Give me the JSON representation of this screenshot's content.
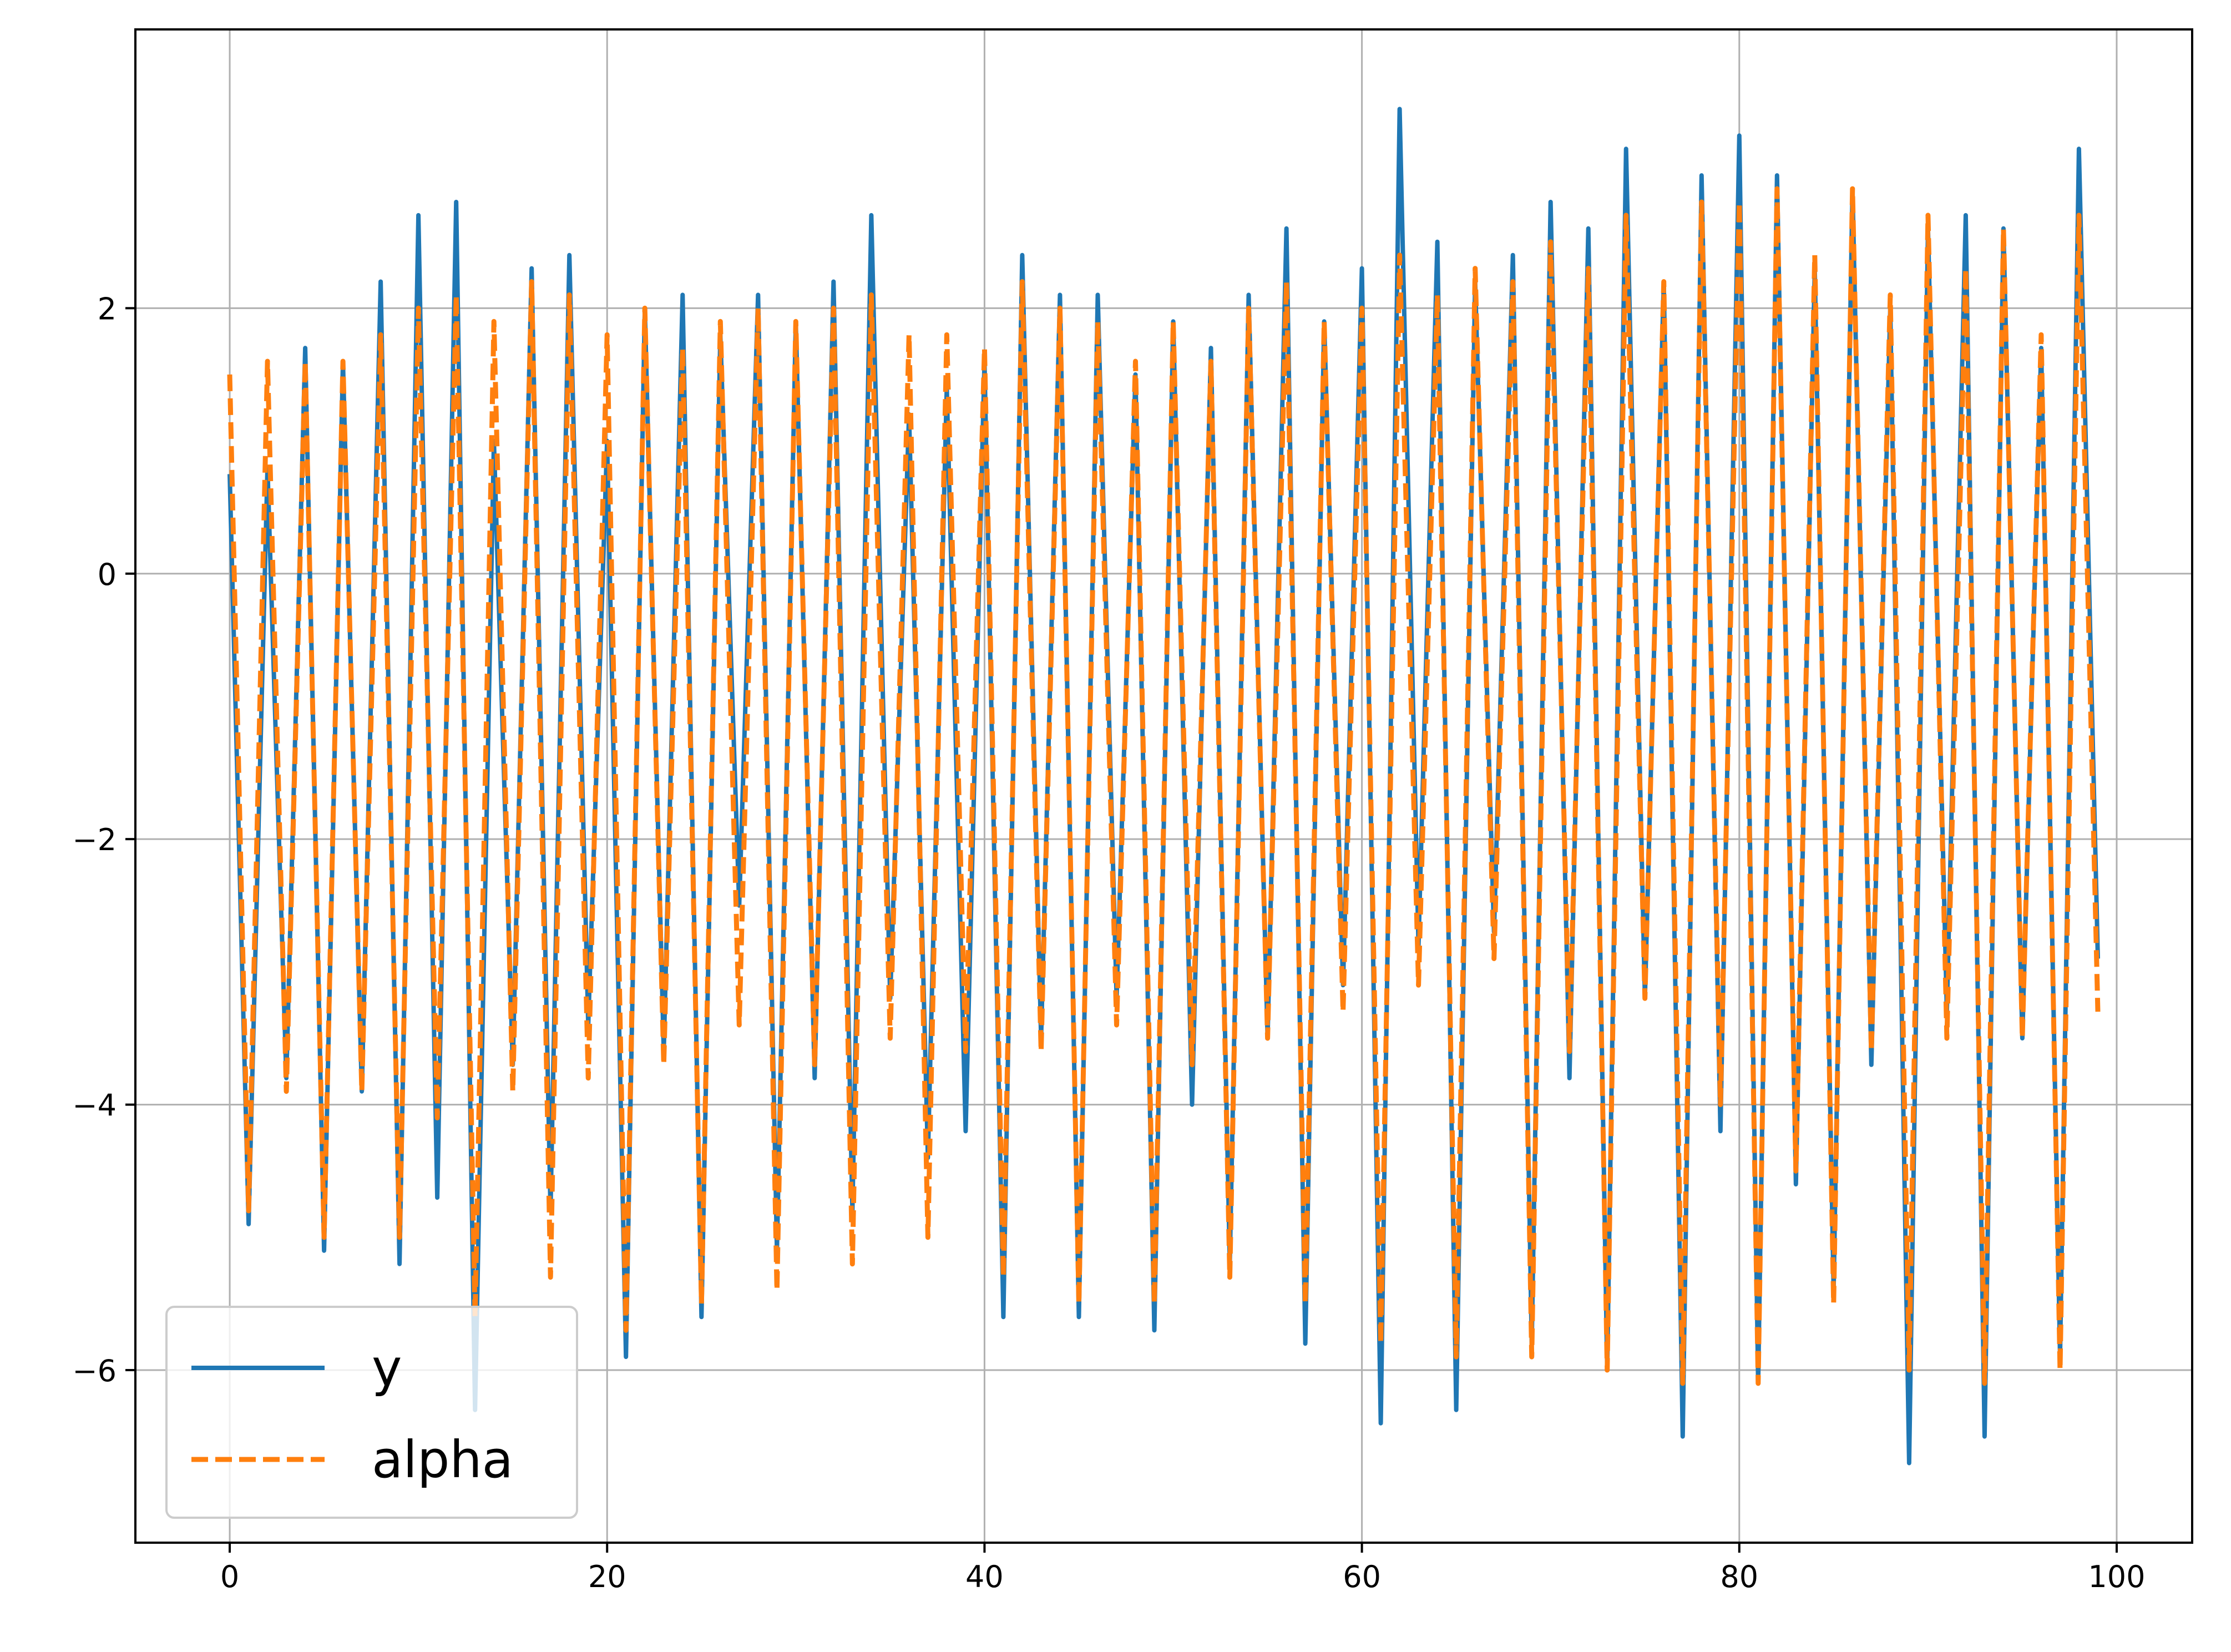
{
  "chart_data": {
    "type": "line",
    "title": "",
    "xlabel": "",
    "ylabel": "",
    "xlim": [
      -5,
      104
    ],
    "ylim": [
      -7.3,
      4.1
    ],
    "xticks": [
      0,
      20,
      40,
      60,
      80,
      100
    ],
    "yticks": [
      2,
      0,
      -2,
      -4,
      -6
    ],
    "xtick_labels": [
      "0",
      "20",
      "40",
      "60",
      "80",
      "100"
    ],
    "ytick_labels": [
      "2",
      "0",
      "−2",
      "−4",
      "−6"
    ],
    "grid": true,
    "legend_position": "lower-left",
    "x": [
      0,
      1,
      2,
      3,
      4,
      5,
      6,
      7,
      8,
      9,
      10,
      11,
      12,
      13,
      14,
      15,
      16,
      17,
      18,
      19,
      20,
      21,
      22,
      23,
      24,
      25,
      26,
      27,
      28,
      29,
      30,
      31,
      32,
      33,
      34,
      35,
      36,
      37,
      38,
      39,
      40,
      41,
      42,
      43,
      44,
      45,
      46,
      47,
      48,
      49,
      50,
      51,
      52,
      53,
      54,
      55,
      56,
      57,
      58,
      59,
      60,
      61,
      62,
      63,
      64,
      65,
      66,
      67,
      68,
      69,
      70,
      71,
      72,
      73,
      74,
      75,
      76,
      77,
      78,
      79,
      80,
      81,
      82,
      83,
      84,
      85,
      86,
      87,
      88,
      89,
      90,
      91,
      92,
      93,
      94,
      95,
      96,
      97,
      98,
      99
    ],
    "series": [
      {
        "name": "y",
        "color": "#1f77b4",
        "dash": "solid",
        "values": [
          0.75,
          -4.9,
          0.8,
          -3.8,
          1.7,
          -5.1,
          1.6,
          -3.9,
          2.2,
          -5.2,
          2.7,
          -4.7,
          2.8,
          -6.3,
          1.0,
          -3.7,
          2.3,
          -4.8,
          2.4,
          -3.4,
          1.0,
          -5.9,
          2.0,
          -3.6,
          2.1,
          -5.6,
          1.8,
          -2.5,
          2.1,
          -5.1,
          1.9,
          -3.8,
          2.2,
          -4.8,
          2.7,
          -3.2,
          1.2,
          -4.4,
          1.4,
          -4.2,
          1.6,
          -5.6,
          2.4,
          -3.5,
          2.1,
          -5.6,
          2.1,
          -3.2,
          1.5,
          -5.7,
          1.9,
          -4.0,
          1.7,
          -5.2,
          2.1,
          -3.5,
          2.6,
          -5.8,
          1.9,
          -3.1,
          2.3,
          -6.4,
          3.5,
          -2.8,
          2.5,
          -6.3,
          2.2,
          -2.7,
          2.4,
          -5.8,
          2.8,
          -3.8,
          2.6,
          -6.0,
          3.2,
          -3.2,
          2.2,
          -6.5,
          3.0,
          -4.2,
          3.3,
          -6.1,
          3.0,
          -4.6,
          2.3,
          -5.4,
          2.9,
          -3.7,
          2.0,
          -6.7,
          2.6,
          -3.3,
          2.7,
          -6.5,
          2.6,
          -3.5,
          1.7,
          -5.9,
          3.2,
          -2.9
        ]
      },
      {
        "name": "alpha",
        "color": "#ff7f0e",
        "dash": "dashed",
        "values": [
          1.5,
          -4.8,
          1.6,
          -3.9,
          1.6,
          -5.0,
          1.6,
          -3.9,
          1.8,
          -5.0,
          2.0,
          -4.1,
          2.1,
          -5.6,
          1.9,
          -3.9,
          2.2,
          -5.3,
          2.1,
          -3.8,
          1.8,
          -5.7,
          2.0,
          -3.7,
          1.7,
          -5.5,
          1.9,
          -3.4,
          2.0,
          -5.4,
          1.9,
          -3.7,
          2.0,
          -5.2,
          2.1,
          -3.5,
          1.8,
          -5.0,
          1.8,
          -3.6,
          1.7,
          -5.3,
          2.2,
          -3.6,
          2.0,
          -5.5,
          1.9,
          -3.4,
          1.6,
          -5.5,
          1.9,
          -3.7,
          1.6,
          -5.3,
          2.0,
          -3.5,
          2.2,
          -5.5,
          1.9,
          -3.3,
          2.0,
          -5.8,
          2.4,
          -3.1,
          2.1,
          -5.9,
          2.3,
          -2.9,
          2.2,
          -5.9,
          2.5,
          -3.6,
          2.3,
          -6.0,
          2.7,
          -3.2,
          2.2,
          -6.1,
          2.8,
          -4.0,
          2.8,
          -6.1,
          2.9,
          -4.5,
          2.4,
          -5.5,
          2.9,
          -3.6,
          2.1,
          -6.0,
          2.7,
          -3.5,
          2.3,
          -6.1,
          2.6,
          -3.5,
          1.8,
          -6.0,
          2.7,
          -3.3
        ]
      }
    ]
  }
}
